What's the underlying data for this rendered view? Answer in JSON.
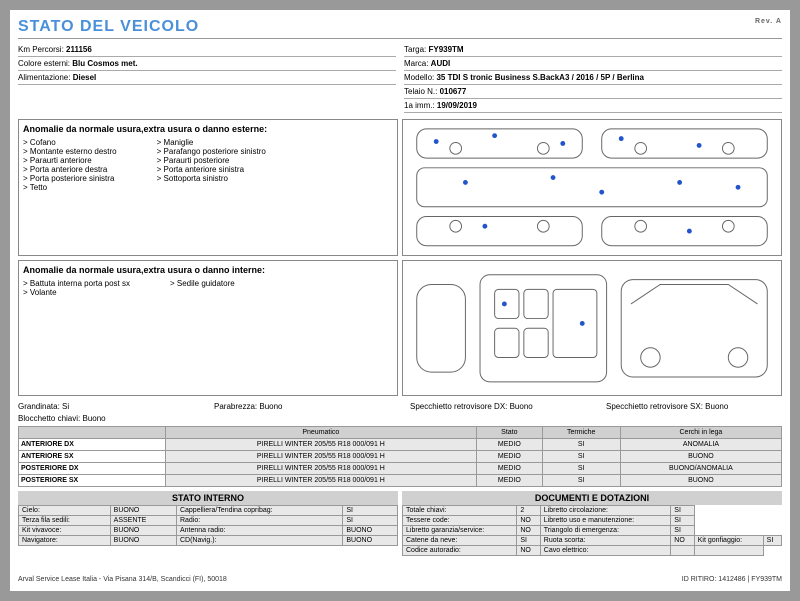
{
  "title": "STATO DEL VEICOLO",
  "rev": "Rev. A",
  "info_left": [
    {
      "label": "Km Percorsi:",
      "value": "211156"
    },
    {
      "label": "Colore esterni:",
      "value": "Blu Cosmos met."
    },
    {
      "label": "Alimentazione:",
      "value": "Diesel"
    }
  ],
  "info_right": [
    {
      "label": "Targa:",
      "value": "FY939TM"
    },
    {
      "label": "Marca:",
      "value": "AUDI"
    },
    {
      "label": "Modello:",
      "value": "35 TDI S tronic Business S.BackA3 / 2016 / 5P / Berlina"
    },
    {
      "label": "Telaio N.:",
      "value": "010677"
    },
    {
      "label": "1a imm.:",
      "value": "19/09/2019"
    }
  ],
  "anomalie_ext_title": "Anomalie da normale usura,extra usura o danno esterne:",
  "anomalie_ext_col1": [
    "Cofano",
    "Montante esterno destro",
    "Paraurti anteriore",
    "Porta anteriore destra",
    "Porta posteriore sinistra",
    "Tetto"
  ],
  "anomalie_ext_col2": [
    "Maniglie",
    "Parafango posteriore sinistro",
    "Paraurti posteriore",
    "Porta anteriore sinistra",
    "Sottoporta sinistro"
  ],
  "anomalie_int_title": "Anomalie da normale usura,extra usura o danno interne:",
  "anomalie_int_col1": [
    "Battuta interna porta post sx",
    "Volante"
  ],
  "anomalie_int_col2": [
    "Sedile guidatore"
  ],
  "status": {
    "grandinata": "Grandinata: Si",
    "parabrezza": "Parabrezza: Buono",
    "specdx": "Specchietto retrovisore DX: Buono",
    "specsx": "Specchietto retrovisore SX: Buono",
    "blocchetto": "Blocchetto chiavi: Buono"
  },
  "tire_headers": [
    "",
    "Pneumatico",
    "Stato",
    "Termiche",
    "Cerchi in lega"
  ],
  "tire_rows": [
    [
      "ANTERIORE DX",
      "PIRELLI WINTER 205/55 R18 000/091 H",
      "MEDIO",
      "SI",
      "ANOMALIA"
    ],
    [
      "ANTERIORE SX",
      "PIRELLI WINTER 205/55 R18 000/091 H",
      "MEDIO",
      "SI",
      "BUONO"
    ],
    [
      "POSTERIORE DX",
      "PIRELLI WINTER 205/55 R18 000/091 H",
      "MEDIO",
      "SI",
      "BUONO/ANOMALIA"
    ],
    [
      "POSTERIORE SX",
      "PIRELLI WINTER 205/55 R18 000/091 H",
      "MEDIO",
      "SI",
      "BUONO"
    ]
  ],
  "stato_interno_title": "STATO INTERNO",
  "stato_interno": [
    [
      "Cielo:",
      "BUONO",
      "Cappelliera/Tendina copribag:",
      "SI"
    ],
    [
      "Terza fila sedili:",
      "ASSENTE",
      "Radio:",
      "SI"
    ],
    [
      "Kit vivavoce:",
      "BUONO",
      "Antenna radio:",
      "BUONO"
    ],
    [
      "Navigatore:",
      "BUONO",
      "CD(Navig.):",
      "BUONO"
    ]
  ],
  "documenti_title": "DOCUMENTI E DOTAZIONI",
  "documenti": [
    [
      "Totale chiavi:",
      "2",
      "Libretto circolazione:",
      "SI"
    ],
    [
      "Tessere code:",
      "NO",
      "Libretto uso e manutenzione:",
      "SI"
    ],
    [
      "Libretto garanzia/service:",
      "NO",
      "Triangolo di emergenza:",
      "SI"
    ],
    [
      "Catene da neve:",
      "SI",
      "Ruota scorta:",
      "NO",
      "Kit gonfiaggio:",
      "SI"
    ],
    [
      "Codice autoradio:",
      "NO",
      "Cavo elettrico:",
      "",
      ""
    ]
  ],
  "footer_left": "Arval Service Lease Italia - Via Pisana 314/B, Scandicci (FI), 50018",
  "footer_right": "ID RITIRO: 1412486 | FY939TM"
}
